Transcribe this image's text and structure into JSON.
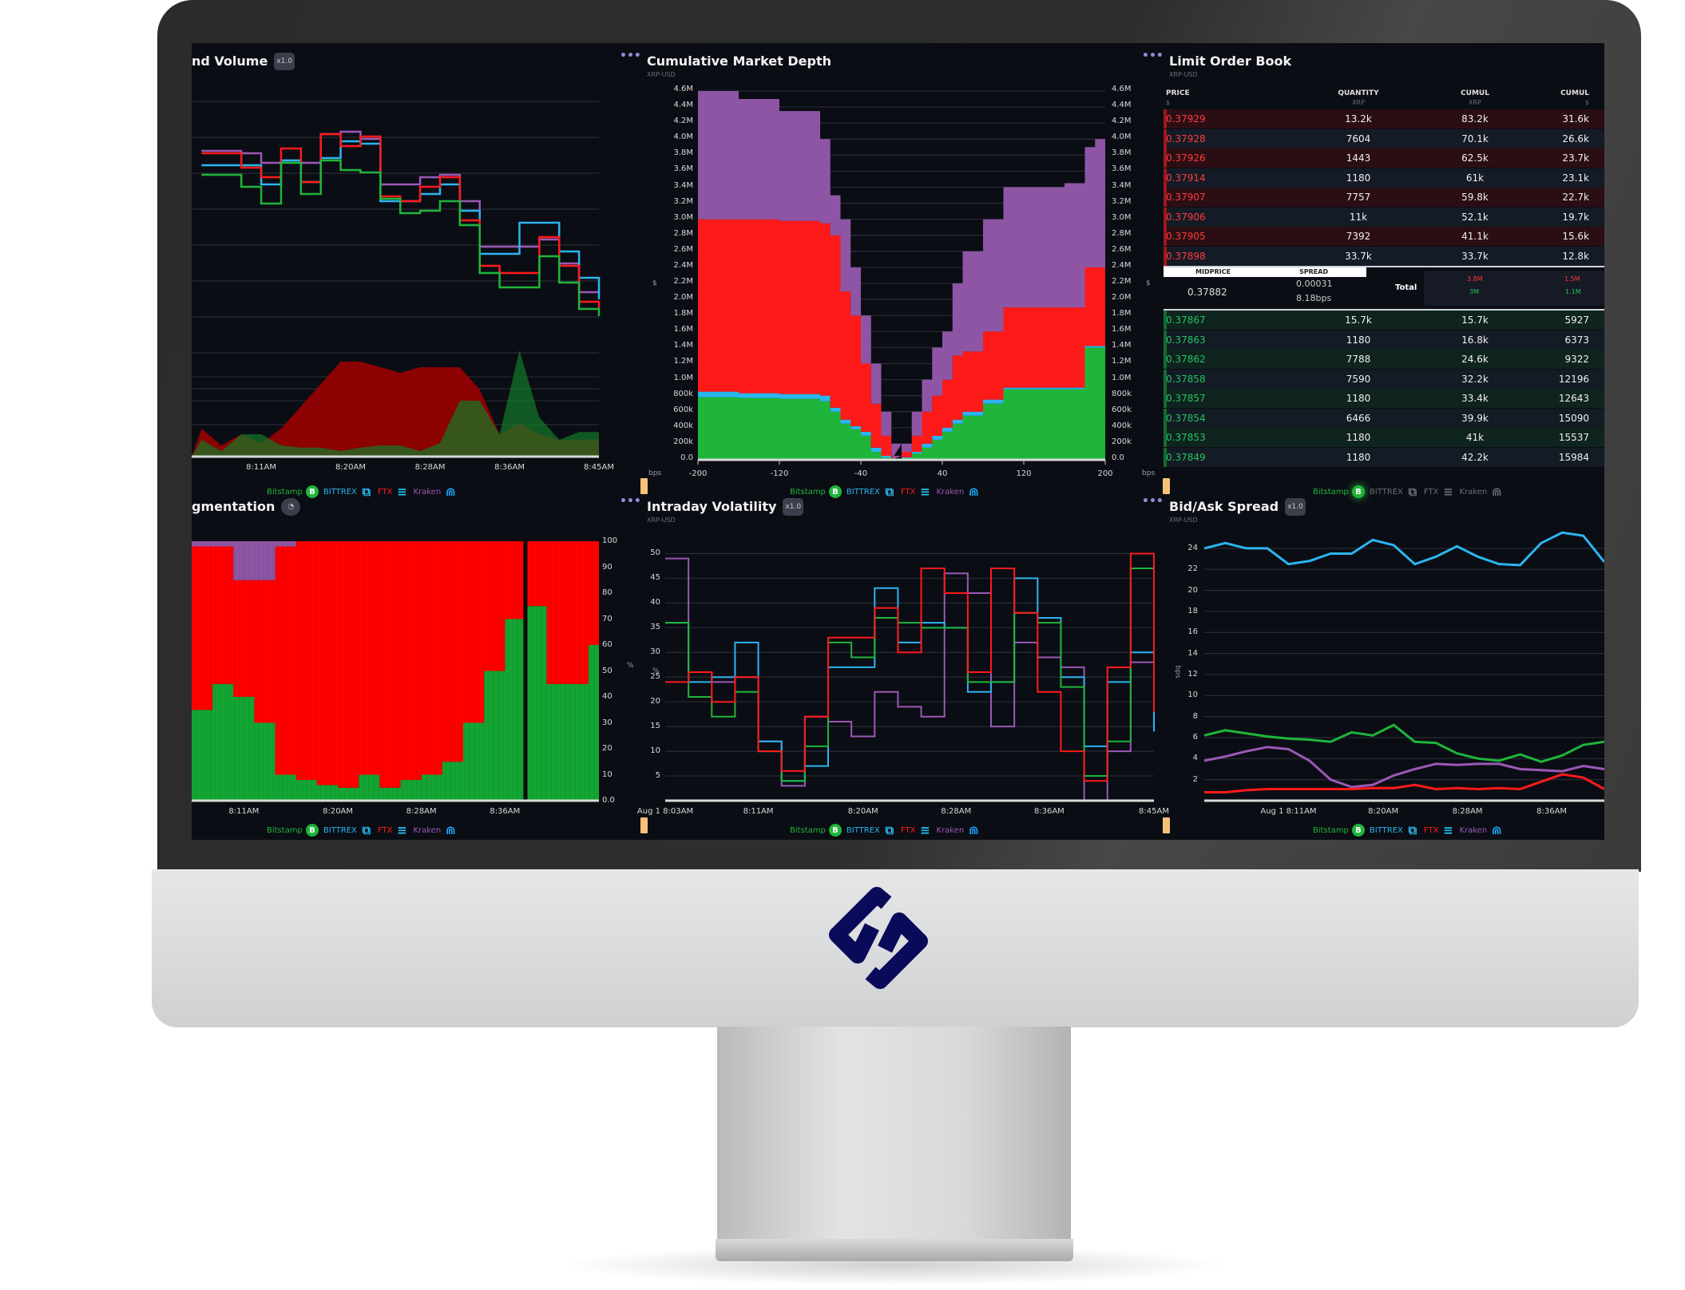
{
  "exchanges": [
    {
      "name": "Bitstamp",
      "color": "#1fb53a",
      "icon": "bitstamp-b-icon",
      "glyph": "B"
    },
    {
      "name": "BITTREX",
      "color": "#2bb5f0",
      "icon": "bittrex-squares-icon",
      "glyph": "⧉"
    },
    {
      "name": "FTX",
      "color": "#ff1a1a",
      "icon": "ftx-bars-icon",
      "glyph": "≡"
    },
    {
      "name": "Kraken",
      "color": "#9b59b6",
      "icon": "kraken-dome-icon",
      "glyph": "⋒"
    }
  ],
  "colors": {
    "background": "#0b0d14",
    "grid": "#2a2d36",
    "logo": "#0a0a5a",
    "handle": "#f6c177"
  },
  "panels": {
    "price_volume": {
      "title": "nd Volume",
      "zoom": "x1.0"
    },
    "depth": {
      "title": "Cumulative Market Depth",
      "subtitle": "XRP-USD",
      "y_unit": "$",
      "x_unit": "bps"
    },
    "order_book": {
      "title": "Limit Order Book",
      "subtitle": "XRP-USD"
    },
    "fragmentation": {
      "title": "gmentation",
      "y_unit": "%"
    },
    "volatility": {
      "title": "Intraday Volatility",
      "subtitle": "XRP-USD",
      "zoom": "x1.0",
      "y_unit": "%"
    },
    "spread": {
      "title": "Bid/Ask Spread",
      "subtitle": "XRP-USD",
      "zoom": "x1.0",
      "y_unit": "bps"
    }
  },
  "order_book": {
    "headers": [
      {
        "label": "PRICE",
        "unit": "$"
      },
      {
        "label": "QUANTITY",
        "unit": "XRP"
      },
      {
        "label": "CUMUL",
        "unit": "XRP"
      },
      {
        "label": "CUMUL",
        "unit": "$"
      }
    ],
    "asks": [
      [
        "0.37929",
        "13.2k",
        "83.2k",
        "31.6k"
      ],
      [
        "0.37928",
        "7604",
        "70.1k",
        "26.6k"
      ],
      [
        "0.37926",
        "1443",
        "62.5k",
        "23.7k"
      ],
      [
        "0.37914",
        "1180",
        "61k",
        "23.1k"
      ],
      [
        "0.37907",
        "7757",
        "59.8k",
        "22.7k"
      ],
      [
        "0.37906",
        "11k",
        "52.1k",
        "19.7k"
      ],
      [
        "0.37905",
        "7392",
        "41.1k",
        "15.6k"
      ],
      [
        "0.37898",
        "33.7k",
        "33.7k",
        "12.8k"
      ]
    ],
    "mid": {
      "midprice_label": "MIDPRICE",
      "spread_label": "SPREAD",
      "midprice": "0.37882",
      "spread": "0.00031",
      "spread_bps": "8.18bps",
      "total_label": "Total",
      "total_ask_xrp": "3.8M",
      "total_bid_xrp": "3M",
      "total_ask_usd": "1.5M",
      "total_bid_usd": "1.1M"
    },
    "bids": [
      [
        "0.37867",
        "15.7k",
        "15.7k",
        "5927"
      ],
      [
        "0.37863",
        "1180",
        "16.8k",
        "6373"
      ],
      [
        "0.37862",
        "7788",
        "24.6k",
        "9322"
      ],
      [
        "0.37858",
        "7590",
        "32.2k",
        "12196"
      ],
      [
        "0.37857",
        "1180",
        "33.4k",
        "12643"
      ],
      [
        "0.37854",
        "6466",
        "39.9k",
        "15090"
      ],
      [
        "0.37853",
        "1180",
        "41k",
        "15537"
      ],
      [
        "0.37849",
        "1180",
        "42.2k",
        "15984"
      ]
    ]
  },
  "chart_data": [
    {
      "id": "price_volume",
      "type": "line",
      "step": true,
      "x_ticks": [
        "8:11AM",
        "8:20AM",
        "8:28AM",
        "8:36AM",
        "8:45AM"
      ],
      "x": [
        "8:05",
        "8:07",
        "8:09",
        "8:11",
        "8:13",
        "8:15",
        "8:17",
        "8:19",
        "8:21",
        "8:23",
        "8:25",
        "8:27",
        "8:29",
        "8:31",
        "8:33",
        "8:35",
        "8:37",
        "8:39",
        "8:41",
        "8:43",
        "8:45"
      ],
      "xlim": [
        "8:04",
        "8:45"
      ],
      "ylim": [
        0,
        100
      ],
      "series": [
        {
          "exchange": "Kraken",
          "values": [
            81,
            81,
            80,
            76,
            77,
            76,
            88,
            89,
            86,
            67,
            67,
            70,
            71,
            60,
            41,
            41,
            41,
            44,
            34,
            22,
            23
          ]
        },
        {
          "exchange": "BITTREX",
          "values": [
            75,
            75,
            75,
            67,
            77,
            68,
            78,
            85,
            84,
            60,
            60,
            63,
            67,
            56,
            38,
            38,
            51,
            51,
            39,
            28,
            19
          ]
        },
        {
          "exchange": "FTX",
          "values": [
            80,
            80,
            74,
            70,
            82,
            68,
            88,
            83,
            87,
            62,
            60,
            66,
            70,
            52,
            33,
            30,
            30,
            45,
            33,
            18,
            15
          ]
        },
        {
          "exchange": "Bitstamp",
          "values": [
            71,
            71,
            66,
            59,
            76,
            63,
            77,
            73,
            72,
            61,
            55,
            56,
            60,
            50,
            30,
            24,
            24,
            37,
            26,
            15,
            12
          ]
        }
      ],
      "volume": [
        {
          "exchange": "FTX",
          "values": [
            25,
            10,
            20,
            12,
            25,
            45,
            65,
            85,
            85,
            80,
            75,
            80,
            80,
            80,
            60,
            20,
            30,
            20,
            15,
            15,
            15
          ]
        },
        {
          "exchange": "Bitstamp",
          "values": [
            15,
            5,
            20,
            20,
            10,
            8,
            8,
            5,
            8,
            10,
            10,
            5,
            12,
            50,
            50,
            20,
            95,
            35,
            15,
            22,
            22
          ]
        }
      ]
    },
    {
      "id": "depth",
      "type": "area",
      "stacked": true,
      "step": true,
      "x": [
        -200,
        -160,
        -120,
        -80,
        -70,
        -60,
        -50,
        -40,
        -30,
        -20,
        -10,
        0,
        10,
        20,
        30,
        40,
        50,
        60,
        80,
        100,
        120,
        160,
        180,
        190,
        200
      ],
      "xlim": [
        -200,
        200
      ],
      "ylim": [
        0,
        4.6
      ],
      "y_scale": "millions",
      "x_ticks": [
        "-200",
        "-120",
        "-40",
        "40",
        "120",
        "200"
      ],
      "y_ticks": [
        "0.0",
        "200k",
        "400k",
        "600k",
        "800k",
        "1.0M",
        "1.2M",
        "1.4M",
        "1.6M",
        "1.8M",
        "2.0M",
        "2.2M",
        "2.4M",
        "2.6M",
        "2.8M",
        "3.0M",
        "3.2M",
        "3.4M",
        "3.6M",
        "3.8M",
        "4.0M",
        "4.2M",
        "4.4M",
        "4.6M"
      ],
      "series": [
        {
          "exchange": "Bitstamp",
          "values": [
            0.78,
            0.77,
            0.76,
            0.73,
            0.6,
            0.45,
            0.38,
            0.3,
            0.1,
            0.03,
            0.01,
            0,
            0.02,
            0.08,
            0.15,
            0.25,
            0.35,
            0.45,
            0.55,
            0.7,
            0.88,
            0.88,
            0.88,
            1.4,
            1.4
          ]
        },
        {
          "exchange": "BITTREX",
          "values": [
            0.07,
            0.06,
            0.06,
            0.07,
            0.05,
            0.05,
            0.04,
            0.05,
            0.05,
            0.02,
            0,
            0,
            0.01,
            0.02,
            0.05,
            0.05,
            0.05,
            0.05,
            0.05,
            0.05,
            0.02,
            0.02,
            0.02,
            0.02,
            0.02
          ]
        },
        {
          "exchange": "FTX",
          "values": [
            2.15,
            2.17,
            2.16,
            2.15,
            2.15,
            1.6,
            1.38,
            0.85,
            0.55,
            0.25,
            0.04,
            0,
            0.07,
            0.2,
            0.4,
            0.5,
            0.6,
            0.8,
            0.75,
            0.85,
            1.0,
            1.0,
            1.0,
            0.98,
            0.98
          ]
        },
        {
          "exchange": "Kraken",
          "values": [
            1.6,
            1.5,
            1.37,
            1.05,
            0.5,
            0.9,
            0.6,
            0.6,
            0.5,
            0.3,
            0.15,
            0,
            0.1,
            0.3,
            0.4,
            0.6,
            0.6,
            0.9,
            1.25,
            1.4,
            1.5,
            1.5,
            1.55,
            1.5,
            1.6
          ]
        }
      ]
    },
    {
      "id": "fragmentation",
      "type": "area",
      "stacked": true,
      "step": true,
      "x": [
        "8:06",
        "8:08",
        "8:10",
        "8:12",
        "8:14",
        "8:16",
        "8:18",
        "8:20",
        "8:22",
        "8:24",
        "8:26",
        "8:28",
        "8:30",
        "8:32",
        "8:34",
        "8:36",
        "8:38",
        "8:40",
        "8:42",
        "8:44"
      ],
      "xlim": [
        "8:06",
        "8:45"
      ],
      "ylim": [
        0,
        100
      ],
      "x_ticks": [
        "8:11AM",
        "8:20AM",
        "8:28AM",
        "8:36AM"
      ],
      "y_ticks": [
        "0.0",
        "10",
        "20",
        "30",
        "40",
        "50",
        "60",
        "70",
        "80",
        "90",
        "100"
      ],
      "marker_time": "8:38",
      "series": [
        {
          "exchange": "Bitstamp",
          "values": [
            35,
            45,
            40,
            30,
            10,
            8,
            6,
            5,
            10,
            5,
            8,
            10,
            15,
            30,
            50,
            70,
            75,
            45,
            45,
            60
          ]
        },
        {
          "exchange": "FTX",
          "values": [
            63,
            53,
            45,
            55,
            88,
            92,
            94,
            95,
            90,
            95,
            92,
            90,
            85,
            70,
            50,
            30,
            25,
            55,
            55,
            40
          ]
        },
        {
          "exchange": "Kraken",
          "values": [
            2,
            2,
            15,
            15,
            2,
            0,
            0,
            0,
            0,
            0,
            0,
            0,
            0,
            0,
            0,
            0,
            0,
            0,
            0,
            0
          ]
        }
      ]
    },
    {
      "id": "volatility",
      "type": "line",
      "step": true,
      "x": [
        "8:03",
        "8:05",
        "8:07",
        "8:09",
        "8:11",
        "8:13",
        "8:15",
        "8:17",
        "8:19",
        "8:21",
        "8:23",
        "8:25",
        "8:27",
        "8:29",
        "8:31",
        "8:33",
        "8:35",
        "8:37",
        "8:39",
        "8:41",
        "8:43",
        "8:45"
      ],
      "xlim": [
        "8:03",
        "8:45"
      ],
      "ylim": [
        0,
        52.5
      ],
      "x_ticks": [
        "Aug 1 8:03AM",
        "8:11AM",
        "8:20AM",
        "8:28AM",
        "8:36AM",
        "8:45AM"
      ],
      "y_ticks": [
        "5",
        "10",
        "15",
        "20",
        "25",
        "30",
        "35",
        "40",
        "45",
        "50"
      ],
      "series": [
        {
          "exchange": "Kraken",
          "values": [
            49,
            26,
            24,
            25,
            12,
            3,
            17,
            16,
            13,
            22,
            19,
            17,
            46,
            42,
            15,
            32,
            29,
            27,
            0,
            10,
            28,
            18
          ]
        },
        {
          "exchange": "BITTREX",
          "values": [
            36,
            24,
            25,
            32,
            12,
            4,
            7,
            27,
            27,
            43,
            32,
            36,
            35,
            22,
            24,
            45,
            37,
            25,
            11,
            24,
            30,
            14
          ]
        },
        {
          "exchange": "Bitstamp",
          "values": [
            36,
            21,
            17,
            22,
            10,
            4,
            11,
            32,
            29,
            37,
            36,
            35,
            35,
            24,
            24,
            38,
            36,
            23,
            5,
            12,
            47,
            19
          ]
        },
        {
          "exchange": "FTX",
          "values": [
            24,
            26,
            20,
            25,
            10,
            6,
            17,
            33,
            33,
            39,
            30,
            47,
            42,
            26,
            47,
            38,
            22,
            10,
            4,
            27,
            50,
            18
          ]
        }
      ]
    },
    {
      "id": "spread",
      "type": "line",
      "step": false,
      "x": [
        "8:03",
        "8:05",
        "8:07",
        "8:09",
        "8:11",
        "8:13",
        "8:15",
        "8:17",
        "8:19",
        "8:21",
        "8:23",
        "8:25",
        "8:27",
        "8:29",
        "8:31",
        "8:33",
        "8:35",
        "8:37",
        "8:39",
        "8:41"
      ],
      "xlim": [
        "8:03",
        "8:41"
      ],
      "ylim": [
        0,
        26.5
      ],
      "x_ticks": [
        "Aug 1 8:11AM",
        "8:20AM",
        "8:28AM",
        "8:36AM"
      ],
      "y_ticks": [
        "2",
        "4",
        "6",
        "8",
        "10",
        "12",
        "14",
        "16",
        "18",
        "20",
        "22",
        "24"
      ],
      "series": [
        {
          "exchange": "BITTREX",
          "values": [
            24,
            24.5,
            24,
            24,
            22.5,
            22.8,
            23.5,
            23.5,
            24.8,
            24.3,
            22.5,
            23.2,
            24.2,
            23.2,
            22.5,
            22.4,
            24.5,
            25.5,
            25.2,
            22.7
          ]
        },
        {
          "exchange": "Bitstamp",
          "values": [
            6.2,
            6.7,
            6.4,
            6.1,
            5.9,
            5.8,
            5.6,
            6.5,
            6.2,
            7.2,
            5.6,
            5.5,
            4.5,
            4.0,
            3.8,
            4.4,
            3.7,
            4.3,
            5.3,
            5.6
          ]
        },
        {
          "exchange": "Kraken",
          "values": [
            3.8,
            4.2,
            4.7,
            5.1,
            4.9,
            3.8,
            2.0,
            1.3,
            1.5,
            2.4,
            3.0,
            3.5,
            3.4,
            3.5,
            3.5,
            3.0,
            2.9,
            2.8,
            3.3,
            3.0
          ]
        },
        {
          "exchange": "FTX",
          "values": [
            0.8,
            0.8,
            1.0,
            1.1,
            1.1,
            1.1,
            1.1,
            1.1,
            1.2,
            1.2,
            1.5,
            1.1,
            1.2,
            1.1,
            1.2,
            1.1,
            1.8,
            2.5,
            2.2,
            1.1
          ]
        }
      ]
    }
  ]
}
